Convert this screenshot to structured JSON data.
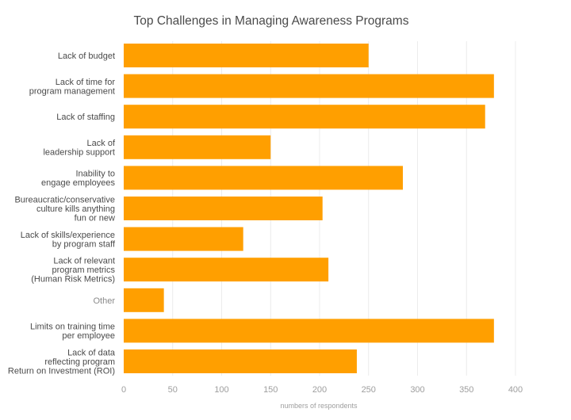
{
  "chart_data": {
    "type": "bar",
    "orientation": "horizontal",
    "title": "Top Challenges in Managing Awareness Programs",
    "xlabel": "numbers of respondents",
    "ylabel": "",
    "xlim": [
      0,
      400
    ],
    "xticks": [
      "0",
      "50",
      "100",
      "150",
      "200",
      "250",
      "300",
      "350",
      "400"
    ],
    "grid": true,
    "bar_color": "#ff9f00",
    "categories": [
      "Lack of budget",
      "Lack of time for\nprogram management",
      "Lack of staffing",
      "Lack of\nleadership support",
      "Inability to\nengage employees",
      "Bureaucratic/conservative\nculture kills anything\nfun or new",
      "Lack of skills/experience\nby program staff",
      "Lack of relevant\nprogram metrics\n(Human Risk Metrics)",
      "Other",
      "Limits on training time\nper employee",
      "Lack of data\nreflecting program\nReturn on Investment (ROI)"
    ],
    "values": [
      250,
      378,
      369,
      150,
      285,
      203,
      122,
      209,
      41,
      378,
      238
    ]
  }
}
